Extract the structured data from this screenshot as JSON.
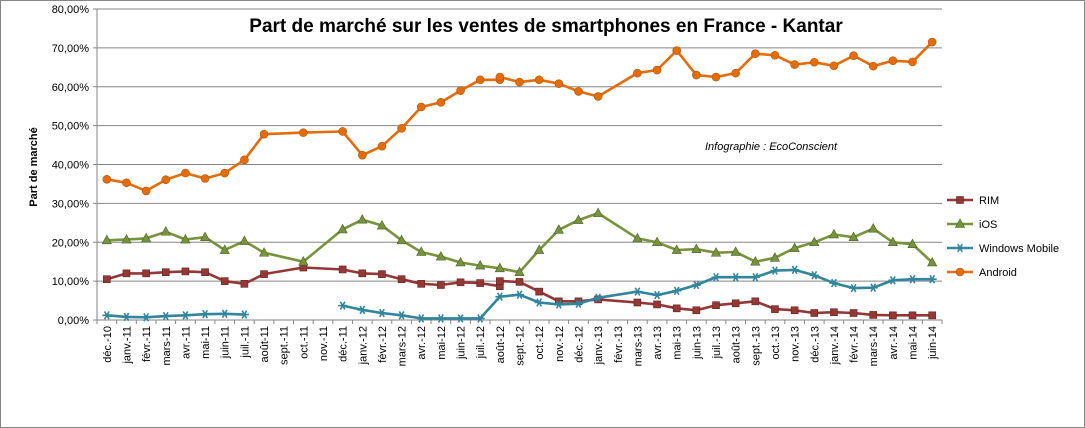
{
  "chart_data": {
    "type": "line",
    "title": "Part de marché sur les ventes de smartphones en France - Kantar",
    "ylabel": "Part de marché",
    "xlabel": "",
    "annotation": "Infographie : EcoConscient",
    "ylim": [
      0,
      80
    ],
    "y_ticks": [
      "0,00%",
      "10,00%",
      "20,00%",
      "30,00%",
      "40,00%",
      "50,00%",
      "60,00%",
      "70,00%",
      "80,00%"
    ],
    "grid": "horizontal",
    "legend_position": "right",
    "categories": [
      "déc.-10",
      "janv.-11",
      "févr.-11",
      "mars-11",
      "avr.-11",
      "mai-11",
      "juin-11",
      "juil.-11",
      "août-11",
      "sept.-11",
      "oct.-11",
      "nov.-11",
      "déc.-11",
      "janv.-12",
      "févr.-12",
      "mars-12",
      "avr.-12",
      "mai-12",
      "juin-12",
      "juil.-12",
      "août-12",
      "sept.-12",
      "oct.-12",
      "nov.-12",
      "déc.-12",
      "janv.-13",
      "févr.-13",
      "mars-13",
      "avr.-13",
      "mai-13",
      "juin-13",
      "juil.-13",
      "août-13",
      "sept.-13",
      "oct.-13",
      "nov.-13",
      "déc.-13",
      "janv.-14",
      "févr.-14",
      "mars-14",
      "avr.-14",
      "mai-14",
      "juin-14"
    ],
    "series": [
      {
        "name": "RIM",
        "color": "#953735",
        "marker": "square",
        "points": [
          [
            0,
            10.5
          ],
          [
            1,
            12
          ],
          [
            2,
            12
          ],
          [
            3,
            12.3
          ],
          [
            4,
            12.5
          ],
          [
            5,
            12.3
          ],
          [
            6,
            10
          ],
          [
            7,
            9.3
          ],
          [
            8,
            11.8
          ],
          [
            10,
            13.5
          ],
          [
            12,
            13
          ],
          [
            13,
            12
          ],
          [
            14,
            11.8
          ],
          [
            15,
            10.5
          ],
          [
            16,
            9.3
          ],
          [
            17,
            9
          ],
          [
            18,
            9.7
          ],
          [
            19,
            9.5
          ],
          [
            20,
            8.7
          ],
          [
            20,
            10
          ],
          [
            21,
            9.8
          ],
          [
            22,
            7.3
          ],
          [
            23,
            4.8
          ],
          [
            24,
            4.8
          ],
          [
            25,
            5.3
          ],
          [
            27,
            4.5
          ],
          [
            28,
            4
          ],
          [
            29,
            3
          ],
          [
            30,
            2.5
          ],
          [
            31,
            3.8
          ],
          [
            32,
            4.3
          ],
          [
            33,
            4.8
          ],
          [
            34,
            2.8
          ],
          [
            35,
            2.5
          ],
          [
            36,
            1.8
          ],
          [
            37,
            2
          ],
          [
            38,
            1.8
          ],
          [
            39,
            1.3
          ],
          [
            40,
            1.2
          ],
          [
            41,
            1.2
          ],
          [
            42,
            1.2
          ]
        ]
      },
      {
        "name": "iOS",
        "color": "#77933c",
        "marker": "triangle",
        "points": [
          [
            0,
            20.5
          ],
          [
            1,
            20.7
          ],
          [
            2,
            21
          ],
          [
            3,
            22.7
          ],
          [
            4,
            20.7
          ],
          [
            5,
            21.3
          ],
          [
            6,
            18
          ],
          [
            7,
            20.3
          ],
          [
            8,
            17.3
          ],
          [
            10,
            15
          ],
          [
            12,
            23.3
          ],
          [
            13,
            25.8
          ],
          [
            14,
            24.3
          ],
          [
            15,
            20.5
          ],
          [
            16,
            17.5
          ],
          [
            17,
            16.3
          ],
          [
            18,
            14.8
          ],
          [
            19,
            14
          ],
          [
            20,
            13.3
          ],
          [
            21,
            12.3
          ],
          [
            22,
            18
          ],
          [
            23,
            23.2
          ],
          [
            24,
            25.7
          ],
          [
            25,
            27.5
          ],
          [
            27,
            21
          ],
          [
            28,
            20
          ],
          [
            29,
            18
          ],
          [
            30,
            18.2
          ],
          [
            31,
            17.3
          ],
          [
            32,
            17.5
          ],
          [
            33,
            15
          ],
          [
            34,
            16
          ],
          [
            35,
            18.5
          ],
          [
            36,
            20
          ],
          [
            37,
            22
          ],
          [
            38,
            21.3
          ],
          [
            39,
            23.5
          ],
          [
            40,
            20
          ],
          [
            41,
            19.5
          ],
          [
            42,
            14.8
          ]
        ]
      },
      {
        "name": "Windows Mobile",
        "color": "#31859c",
        "marker": "star",
        "segments": [
          [
            [
              0,
              1.2
            ],
            [
              1,
              0.8
            ],
            [
              2,
              0.7
            ],
            [
              3,
              1
            ],
            [
              4,
              1.2
            ],
            [
              5,
              1.5
            ],
            [
              6,
              1.6
            ],
            [
              7,
              1.4
            ]
          ],
          [
            [
              12,
              3.7
            ],
            [
              13,
              2.6
            ],
            [
              14,
              1.8
            ],
            [
              15,
              1.2
            ],
            [
              16,
              0.4
            ],
            [
              17,
              0.4
            ],
            [
              18,
              0.4
            ],
            [
              19,
              0.4
            ],
            [
              20,
              6
            ],
            [
              21,
              6.5
            ],
            [
              22,
              4.5
            ],
            [
              23,
              4
            ],
            [
              24,
              4.2
            ],
            [
              25,
              5.7
            ],
            [
              27,
              7.3
            ],
            [
              28,
              6.4
            ],
            [
              29,
              7.5
            ],
            [
              30,
              9
            ],
            [
              31,
              11
            ],
            [
              32,
              11
            ],
            [
              33,
              11
            ],
            [
              34,
              12.7
            ],
            [
              35,
              12.9
            ],
            [
              36,
              11.5
            ],
            [
              37,
              9.5
            ],
            [
              38,
              8.2
            ],
            [
              39,
              8.3
            ],
            [
              40,
              10.2
            ],
            [
              41,
              10.5
            ],
            [
              42,
              10.5
            ]
          ]
        ]
      },
      {
        "name": "Android",
        "color": "#e46c0a",
        "marker": "circle",
        "points": [
          [
            0,
            36.2
          ],
          [
            1,
            35.3
          ],
          [
            2,
            33.2
          ],
          [
            3,
            36.1
          ],
          [
            4,
            37.8
          ],
          [
            5,
            36.4
          ],
          [
            6,
            37.8
          ],
          [
            7,
            41.2
          ],
          [
            8,
            47.8
          ],
          [
            10,
            48.2
          ],
          [
            12,
            48.5
          ],
          [
            13,
            42.4
          ],
          [
            14,
            44.7
          ],
          [
            15,
            49.3
          ],
          [
            16,
            54.8
          ],
          [
            17,
            56
          ],
          [
            18,
            59
          ],
          [
            19,
            61.8
          ],
          [
            20,
            61.8
          ],
          [
            20,
            62.5
          ],
          [
            21,
            61.2
          ],
          [
            22,
            61.8
          ],
          [
            23,
            60.8
          ],
          [
            24,
            58.8
          ],
          [
            25,
            57.5
          ],
          [
            27,
            63.5
          ],
          [
            28,
            64.3
          ],
          [
            29,
            69.3
          ],
          [
            30,
            63
          ],
          [
            31,
            62.5
          ],
          [
            32,
            63.5
          ],
          [
            33,
            68.5
          ],
          [
            34,
            68.1
          ],
          [
            35,
            65.7
          ],
          [
            36,
            66.3
          ],
          [
            37,
            65.4
          ],
          [
            38,
            68
          ],
          [
            39,
            65.3
          ],
          [
            40,
            66.7
          ],
          [
            41,
            66.4
          ],
          [
            42,
            71.5
          ]
        ]
      }
    ]
  }
}
